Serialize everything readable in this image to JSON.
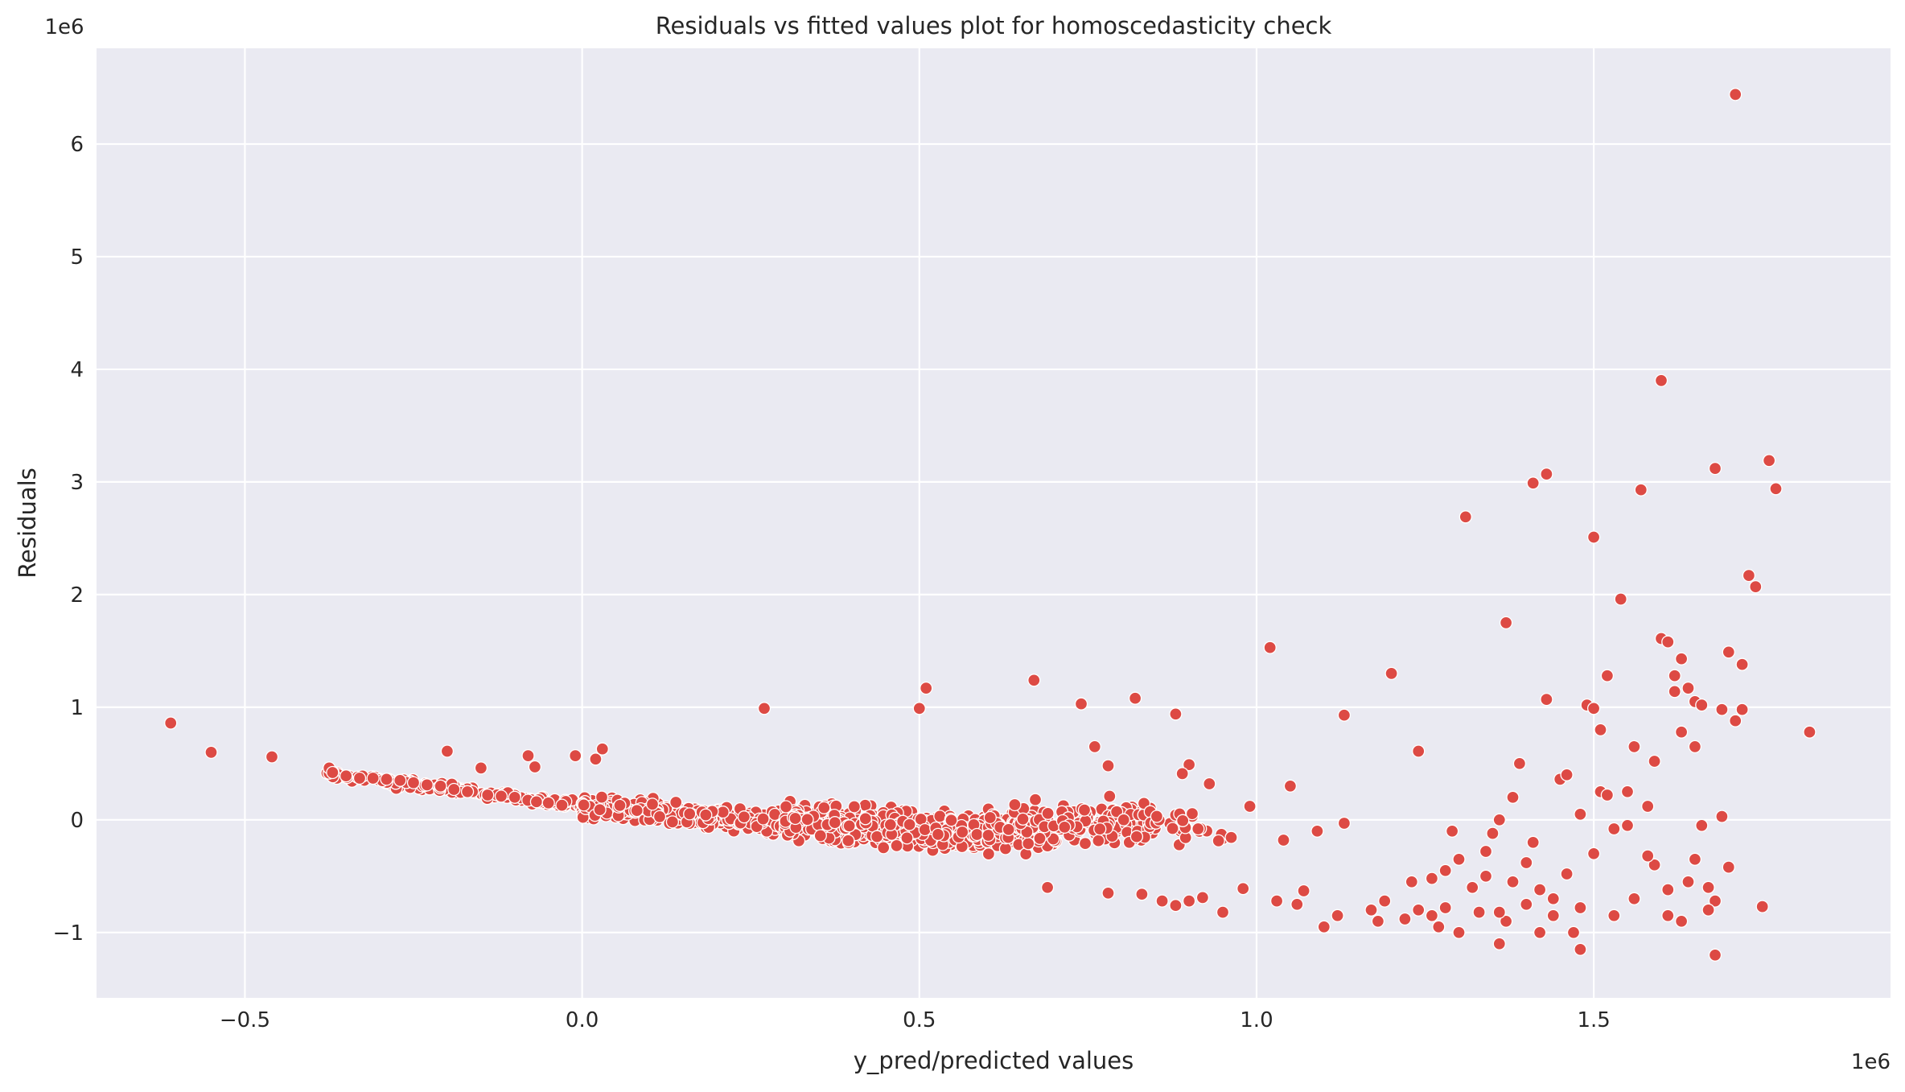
{
  "chart_data": {
    "type": "scatter",
    "title": "Residuals vs fitted values plot for homoscedasticity check",
    "xlabel": "y_pred/predicted values",
    "ylabel": "Residuals",
    "x_offset_text": "1e6",
    "y_offset_text": "1e6",
    "x_unit_scale": 1000000,
    "y_unit_scale": 1000000,
    "xlim": [
      -0.72,
      1.94
    ],
    "ylim": [
      -1.58,
      6.85
    ],
    "x_ticks": [
      -0.5,
      0.0,
      0.5,
      1.0,
      1.5
    ],
    "x_tick_labels": [
      "−0.5",
      "0.0",
      "0.5",
      "1.0",
      "1.5"
    ],
    "y_ticks": [
      -1,
      0,
      1,
      2,
      3,
      4,
      5,
      6
    ],
    "y_tick_labels": [
      "−1",
      "0",
      "1",
      "2",
      "3",
      "4",
      "5",
      "6"
    ],
    "grid": true,
    "background_color": "#eaeaf2",
    "marker_color": "#dd4a44",
    "series": [
      {
        "values_note_units": "x and y in units of 1e6",
        "points": [
          [
            -0.61,
            0.86
          ],
          [
            -0.55,
            0.6
          ],
          [
            -0.46,
            0.56
          ],
          [
            -0.375,
            0.46
          ],
          [
            -0.37,
            0.42
          ],
          [
            -0.35,
            0.39
          ],
          [
            -0.33,
            0.37
          ],
          [
            -0.31,
            0.37
          ],
          [
            -0.29,
            0.36
          ],
          [
            -0.27,
            0.35
          ],
          [
            -0.25,
            0.33
          ],
          [
            -0.23,
            0.31
          ],
          [
            -0.21,
            0.3
          ],
          [
            -0.2,
            0.61
          ],
          [
            -0.19,
            0.27
          ],
          [
            -0.17,
            0.25
          ],
          [
            -0.15,
            0.46
          ],
          [
            -0.14,
            0.22
          ],
          [
            -0.12,
            0.21
          ],
          [
            -0.1,
            0.2
          ],
          [
            -0.08,
            0.57
          ],
          [
            -0.07,
            0.47
          ],
          [
            -0.05,
            0.15
          ],
          [
            -0.03,
            0.13
          ],
          [
            0.02,
            0.54
          ],
          [
            0.03,
            0.63
          ],
          [
            -0.01,
            0.57
          ],
          [
            0.27,
            0.99
          ],
          [
            0.51,
            1.17
          ],
          [
            0.5,
            0.99
          ],
          [
            0.67,
            1.24
          ],
          [
            0.74,
            1.03
          ],
          [
            0.82,
            1.08
          ],
          [
            0.88,
            0.94
          ],
          [
            0.76,
            0.65
          ],
          [
            0.78,
            0.48
          ],
          [
            0.69,
            -0.6
          ],
          [
            0.78,
            -0.65
          ],
          [
            0.83,
            -0.66
          ],
          [
            0.86,
            -0.72
          ],
          [
            0.88,
            -0.76
          ],
          [
            0.9,
            -0.72
          ],
          [
            0.92,
            -0.69
          ],
          [
            0.95,
            -0.82
          ],
          [
            0.98,
            -0.61
          ],
          [
            0.99,
            0.12
          ],
          [
            0.9,
            0.49
          ],
          [
            0.93,
            0.32
          ],
          [
            0.89,
            0.41
          ],
          [
            1.02,
            1.53
          ],
          [
            1.03,
            -0.72
          ],
          [
            1.04,
            -0.18
          ],
          [
            1.05,
            0.3
          ],
          [
            1.06,
            -0.75
          ],
          [
            1.07,
            -0.63
          ],
          [
            1.09,
            -0.1
          ],
          [
            1.1,
            -0.95
          ],
          [
            1.12,
            -0.85
          ],
          [
            1.13,
            -0.03
          ],
          [
            1.13,
            0.93
          ],
          [
            1.17,
            -0.8
          ],
          [
            1.18,
            -0.9
          ],
          [
            1.19,
            -0.72
          ],
          [
            1.2,
            1.3
          ],
          [
            1.22,
            -0.88
          ],
          [
            1.24,
            0.61
          ],
          [
            1.24,
            -0.8
          ],
          [
            1.26,
            -0.85
          ],
          [
            1.27,
            -0.95
          ],
          [
            1.28,
            -0.45
          ],
          [
            1.29,
            -0.1
          ],
          [
            1.3,
            -1.0
          ],
          [
            1.31,
            2.69
          ],
          [
            1.32,
            -0.6
          ],
          [
            1.33,
            -0.82
          ],
          [
            1.34,
            -0.5
          ],
          [
            1.35,
            -0.12
          ],
          [
            1.36,
            0.0
          ],
          [
            1.36,
            -1.1
          ],
          [
            1.37,
            1.75
          ],
          [
            1.37,
            -0.9
          ],
          [
            1.38,
            0.2
          ],
          [
            1.39,
            0.5
          ],
          [
            1.4,
            -0.75
          ],
          [
            1.41,
            -0.2
          ],
          [
            1.41,
            2.99
          ],
          [
            1.42,
            -1.0
          ],
          [
            1.43,
            3.07
          ],
          [
            1.43,
            1.07
          ],
          [
            1.44,
            -0.7
          ],
          [
            1.45,
            0.36
          ],
          [
            1.46,
            0.4
          ],
          [
            1.47,
            -1.0
          ],
          [
            1.48,
            -1.15
          ],
          [
            1.48,
            0.05
          ],
          [
            1.49,
            1.02
          ],
          [
            1.5,
            0.99
          ],
          [
            1.5,
            2.51
          ],
          [
            1.5,
            -0.3
          ],
          [
            1.51,
            0.25
          ],
          [
            1.51,
            0.8
          ],
          [
            1.52,
            1.28
          ],
          [
            1.52,
            0.22
          ],
          [
            1.53,
            -0.85
          ],
          [
            1.54,
            1.96
          ],
          [
            1.55,
            -0.05
          ],
          [
            1.56,
            0.65
          ],
          [
            1.57,
            2.93
          ],
          [
            1.58,
            0.12
          ],
          [
            1.59,
            0.52
          ],
          [
            1.59,
            -0.4
          ],
          [
            1.6,
            1.61
          ],
          [
            1.6,
            3.9
          ],
          [
            1.61,
            1.58
          ],
          [
            1.61,
            -0.85
          ],
          [
            1.62,
            1.28
          ],
          [
            1.62,
            1.14
          ],
          [
            1.63,
            0.78
          ],
          [
            1.63,
            1.43
          ],
          [
            1.64,
            -0.55
          ],
          [
            1.64,
            1.17
          ],
          [
            1.65,
            0.65
          ],
          [
            1.65,
            1.05
          ],
          [
            1.66,
            -0.05
          ],
          [
            1.66,
            1.02
          ],
          [
            1.67,
            -0.6
          ],
          [
            1.68,
            3.12
          ],
          [
            1.68,
            -1.2
          ],
          [
            1.69,
            0.98
          ],
          [
            1.69,
            0.03
          ],
          [
            1.7,
            1.49
          ],
          [
            1.71,
            6.44
          ],
          [
            1.71,
            0.88
          ],
          [
            1.72,
            1.38
          ],
          [
            1.72,
            0.98
          ],
          [
            1.73,
            2.17
          ],
          [
            1.74,
            2.07
          ],
          [
            1.75,
            -0.77
          ],
          [
            1.76,
            3.19
          ],
          [
            1.77,
            2.94
          ],
          [
            1.82,
            0.78
          ],
          [
            1.7,
            -0.42
          ],
          [
            1.68,
            -0.72
          ],
          [
            1.67,
            -0.8
          ],
          [
            1.65,
            -0.35
          ],
          [
            1.63,
            -0.9
          ],
          [
            1.61,
            -0.62
          ],
          [
            1.58,
            -0.32
          ],
          [
            1.56,
            -0.7
          ],
          [
            1.55,
            0.25
          ],
          [
            1.53,
            -0.08
          ],
          [
            1.48,
            -0.78
          ],
          [
            1.46,
            -0.48
          ],
          [
            1.44,
            -0.85
          ],
          [
            1.42,
            -0.62
          ],
          [
            1.4,
            -0.38
          ],
          [
            1.38,
            -0.55
          ],
          [
            1.36,
            -0.82
          ],
          [
            1.34,
            -0.28
          ],
          [
            1.32,
            -0.6
          ],
          [
            1.3,
            -0.35
          ],
          [
            1.28,
            -0.78
          ],
          [
            1.26,
            -0.52
          ],
          [
            1.23,
            -0.55
          ]
        ],
        "dense_clusters": [
          {
            "x_range": [
              -0.38,
              0.02
            ],
            "y_center_at_start": 0.4,
            "y_center_at_end": 0.12,
            "spread": 0.08,
            "count": 140
          },
          {
            "x_range": [
              0.0,
              0.3
            ],
            "y_center_at_start": 0.12,
            "y_center_at_end": -0.02,
            "spread": 0.18,
            "count": 330
          },
          {
            "x_range": [
              0.3,
              0.6
            ],
            "y_center_at_start": -0.02,
            "y_center_at_end": -0.12,
            "spread": 0.3,
            "count": 520
          },
          {
            "x_range": [
              0.6,
              0.85
            ],
            "y_center_at_start": -0.1,
            "y_center_at_end": 0.0,
            "spread": 0.34,
            "count": 260
          },
          {
            "x_range": [
              0.85,
              0.97
            ],
            "y_center_at_start": 0.0,
            "y_center_at_end": -0.15,
            "spread": 0.28,
            "count": 25
          }
        ]
      }
    ]
  }
}
